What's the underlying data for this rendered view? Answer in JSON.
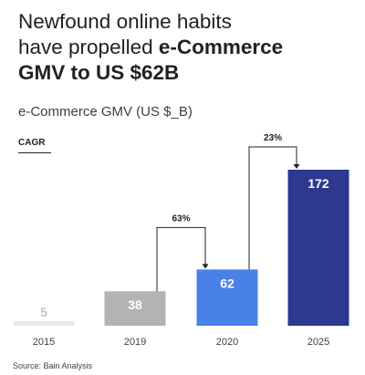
{
  "headline": {
    "line1": "Newfound online habits",
    "line2_plain": "have propelled ",
    "line2_bold": "e-Commerce",
    "line3_bold": "GMV to US $62B"
  },
  "legend": {
    "cagr_label": "CAGR"
  },
  "source": "Source: Bain Analysis",
  "chart_data": {
    "type": "bar",
    "title": "e-Commerce GMV (US $_B)",
    "categories": [
      "2015",
      "2019",
      "2020",
      "2025"
    ],
    "values": [
      5,
      38,
      62,
      172
    ],
    "value_labels": [
      "5",
      "38",
      "62",
      "172"
    ],
    "ylim": [
      0,
      172
    ],
    "grid": false,
    "bar_colors": [
      "#e8e8e8",
      "#b3b3b3",
      "#4a81e8",
      "#2c398f"
    ],
    "value_label_colors": [
      "#c4c4c4",
      "#ffffff",
      "#ffffff",
      "#ffffff"
    ],
    "annotations": [
      {
        "from": "2019",
        "to": "2020",
        "label": "63%"
      },
      {
        "from": "2020",
        "to": "2025",
        "label": "23%"
      }
    ]
  }
}
